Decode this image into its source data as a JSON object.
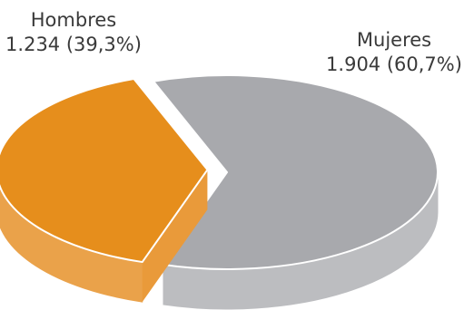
{
  "chart_data": {
    "type": "pie",
    "style": "3d-exploded",
    "slices": [
      {
        "name": "Hombres",
        "value": 1234,
        "value_label": "1.234 (39,3%)",
        "percent": 39.3,
        "color": "#e68e1c",
        "side_color": "#eaa24a",
        "exploded": true
      },
      {
        "name": "Mujeres",
        "value": 1904,
        "value_label": "1.904 (60,7%)",
        "percent": 60.7,
        "color": "#a8a9ad",
        "side_color": "#bcbdc0",
        "exploded": false
      }
    ]
  }
}
